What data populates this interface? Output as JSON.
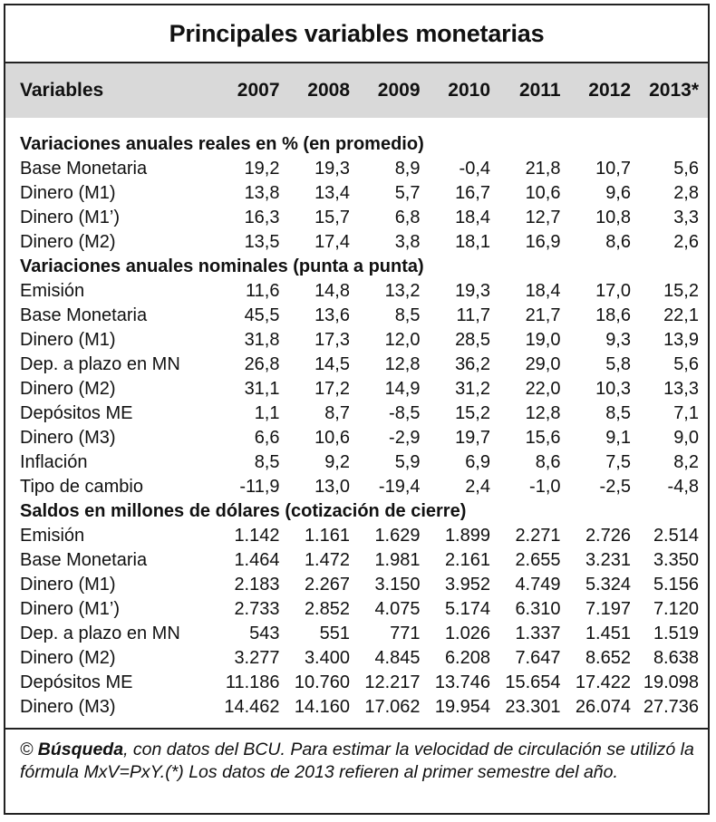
{
  "title": "Principales variables monetarias",
  "header": {
    "variables_label": "Variables",
    "years": [
      "2007",
      "2008",
      "2009",
      "2010",
      "2011",
      "2012",
      "2013*"
    ]
  },
  "sections": [
    {
      "title": "Variaciones anuales reales en % (en promedio)",
      "rows": [
        {
          "name": "Base Monetaria",
          "values": [
            "19,2",
            "19,3",
            "8,9",
            "-0,4",
            "21,8",
            "10,7",
            "5,6"
          ]
        },
        {
          "name": "Dinero (M1)",
          "values": [
            "13,8",
            "13,4",
            "5,7",
            "16,7",
            "10,6",
            "9,6",
            "2,8"
          ]
        },
        {
          "name": "Dinero (M1’)",
          "values": [
            "16,3",
            "15,7",
            "6,8",
            "18,4",
            "12,7",
            "10,8",
            "3,3"
          ]
        },
        {
          "name": "Dinero (M2)",
          "values": [
            "13,5",
            "17,4",
            "3,8",
            "18,1",
            "16,9",
            "8,6",
            "2,6"
          ]
        }
      ]
    },
    {
      "title": "Variaciones anuales nominales (punta a punta)",
      "rows": [
        {
          "name": "Emisión",
          "values": [
            "11,6",
            "14,8",
            "13,2",
            "19,3",
            "18,4",
            "17,0",
            "15,2"
          ]
        },
        {
          "name": "Base Monetaria",
          "values": [
            "45,5",
            "13,6",
            "8,5",
            "11,7",
            "21,7",
            "18,6",
            "22,1"
          ]
        },
        {
          "name": "Dinero (M1)",
          "values": [
            "31,8",
            "17,3",
            "12,0",
            "28,5",
            "19,0",
            "9,3",
            "13,9"
          ]
        },
        {
          "name": "Dep. a plazo en MN",
          "values": [
            "26,8",
            "14,5",
            "12,8",
            "36,2",
            "29,0",
            "5,8",
            "5,6"
          ]
        },
        {
          "name": "Dinero (M2)",
          "values": [
            "31,1",
            "17,2",
            "14,9",
            "31,2",
            "22,0",
            "10,3",
            "13,3"
          ]
        },
        {
          "name": "Depósitos ME",
          "values": [
            "1,1",
            "8,7",
            "-8,5",
            "15,2",
            "12,8",
            "8,5",
            "7,1"
          ]
        },
        {
          "name": "Dinero (M3)",
          "values": [
            "6,6",
            "10,6",
            "-2,9",
            "19,7",
            "15,6",
            "9,1",
            "9,0"
          ]
        },
        {
          "name": "Inflación",
          "values": [
            "8,5",
            "9,2",
            "5,9",
            "6,9",
            "8,6",
            "7,5",
            "8,2"
          ]
        },
        {
          "name": "Tipo de cambio",
          "values": [
            "-11,9",
            "13,0",
            "-19,4",
            "2,4",
            "-1,0",
            "-2,5",
            "-4,8"
          ]
        }
      ]
    },
    {
      "title": "Saldos en millones de dólares (cotización de cierre)",
      "rows": [
        {
          "name": "Emisión",
          "values": [
            "1.142",
            "1.161",
            "1.629",
            "1.899",
            "2.271",
            "2.726",
            "2.514"
          ]
        },
        {
          "name": "Base Monetaria",
          "values": [
            "1.464",
            "1.472",
            "1.981",
            "2.161",
            "2.655",
            "3.231",
            "3.350"
          ]
        },
        {
          "name": "Dinero (M1)",
          "values": [
            "2.183",
            "2.267",
            "3.150",
            "3.952",
            "4.749",
            "5.324",
            "5.156"
          ]
        },
        {
          "name": "Dinero (M1’)",
          "values": [
            "2.733",
            "2.852",
            "4.075",
            "5.174",
            "6.310",
            "7.197",
            "7.120"
          ]
        },
        {
          "name": "Dep. a plazo en MN",
          "values": [
            "543",
            "551",
            "771",
            "1.026",
            "1.337",
            "1.451",
            "1.519"
          ]
        },
        {
          "name": "Dinero (M2)",
          "values": [
            "3.277",
            "3.400",
            "4.845",
            "6.208",
            "7.647",
            "8.652",
            "8.638"
          ]
        },
        {
          "name": "Depósitos ME",
          "values": [
            "11.186",
            "10.760",
            "12.217",
            "13.746",
            "15.654",
            "17.422",
            "19.098"
          ]
        },
        {
          "name": "Dinero (M3)",
          "values": [
            "14.462",
            "14.160",
            "17.062",
            "19.954",
            "23.301",
            "26.074",
            "27.736"
          ]
        }
      ]
    }
  ],
  "footer": {
    "copyright": "© ",
    "source_name": "Búsqueda",
    "text": ", con datos del BCU. Para estimar la velocidad de circulación se utilizó la fórmula MxV=PxY.(*) Los datos de 2013 refieren al primer semestre del año."
  }
}
